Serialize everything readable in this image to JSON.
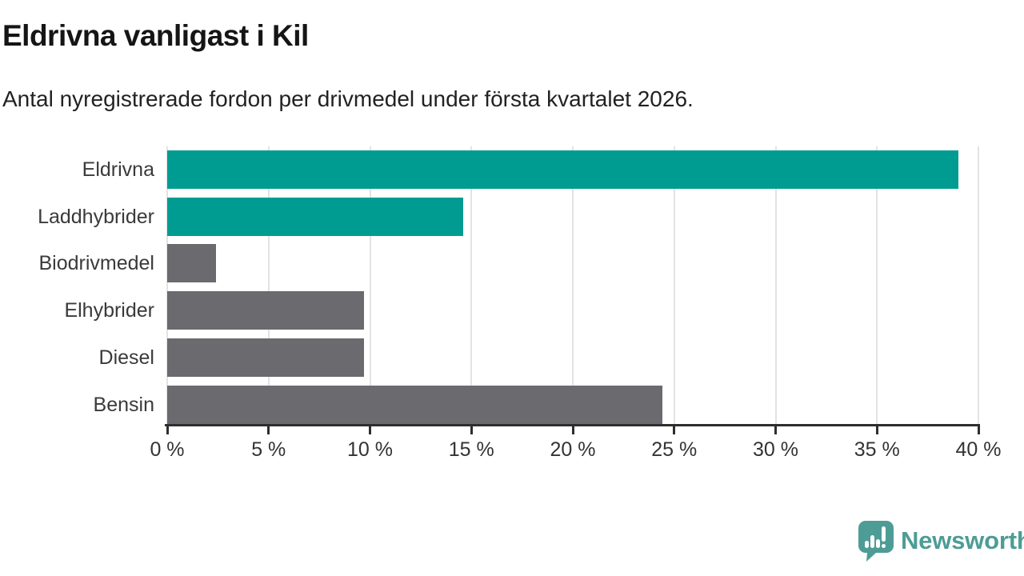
{
  "header": {
    "title": "Eldrivna vanligast i Kil",
    "subtitle": "Antal nyregistrerade fordon per drivmedel under första kvartalet 2026."
  },
  "colors": {
    "highlight": "#009c92",
    "default": "#6a6a6f",
    "gridline": "#e3e3e3",
    "axis": "#2e2e2e",
    "logo_teal": "#4e9c96"
  },
  "chart_data": {
    "type": "bar",
    "orientation": "horizontal",
    "title": "Eldrivna vanligast i Kil",
    "subtitle": "Antal nyregistrerade fordon per drivmedel under första kvartalet 2026.",
    "categories": [
      "Eldrivna",
      "Laddhybrider",
      "Biodrivmedel",
      "Elhybrider",
      "Diesel",
      "Bensin"
    ],
    "values": [
      39.0,
      14.6,
      2.4,
      9.7,
      9.7,
      24.4
    ],
    "unit": "%",
    "bar_color_roles": [
      "highlight",
      "highlight",
      "default",
      "default",
      "default",
      "default"
    ],
    "xlim": [
      0,
      40
    ],
    "x_ticks": [
      0,
      5,
      10,
      15,
      20,
      25,
      30,
      35,
      40
    ],
    "x_tick_labels": [
      "0 %",
      "5 %",
      "10 %",
      "15 %",
      "20 %",
      "25 %",
      "30 %",
      "35 %",
      "40 %"
    ],
    "grid": true,
    "legend": "none"
  },
  "footer": {
    "brand": "Newsworthy",
    "logo_icon": "speech-bubble-bar-chart-exclamation"
  }
}
